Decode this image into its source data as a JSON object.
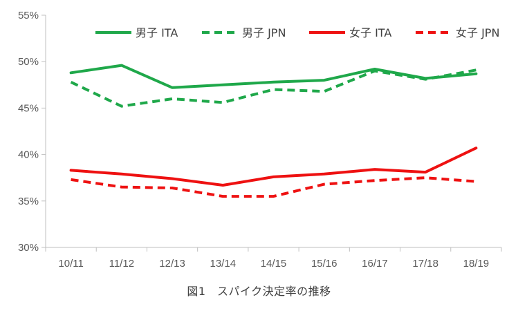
{
  "caption": "図1　スパイク決定率の推移",
  "chart_data": {
    "type": "line",
    "categories": [
      "10/11",
      "11/12",
      "12/13",
      "13/14",
      "14/15",
      "15/16",
      "16/17",
      "17/18",
      "18/19"
    ],
    "y_tick_labels": [
      "30%",
      "35%",
      "40%",
      "45%",
      "50%",
      "55%"
    ],
    "ylim": [
      30,
      55
    ],
    "y_ticks": [
      30,
      35,
      40,
      45,
      50,
      55
    ],
    "grid": false,
    "legend_position": "top",
    "series": [
      {
        "name": "男子 ITA",
        "color": "#1fa84a",
        "dashed": false,
        "values": [
          48.8,
          49.6,
          47.2,
          47.5,
          47.8,
          48.0,
          49.2,
          48.2,
          48.7
        ]
      },
      {
        "name": "男子 JPN",
        "color": "#1fa84a",
        "dashed": true,
        "values": [
          47.8,
          45.2,
          46.0,
          45.6,
          47.0,
          46.8,
          49.0,
          48.1,
          49.1
        ]
      },
      {
        "name": "女子 ITA",
        "color": "#ee1111",
        "dashed": false,
        "values": [
          38.3,
          37.9,
          37.4,
          36.7,
          37.6,
          37.9,
          38.4,
          38.1,
          40.7
        ]
      },
      {
        "name": "女子 JPN",
        "color": "#ee1111",
        "dashed": true,
        "values": [
          37.3,
          36.5,
          36.4,
          35.5,
          35.5,
          36.8,
          37.2,
          37.5,
          37.1
        ]
      }
    ]
  }
}
